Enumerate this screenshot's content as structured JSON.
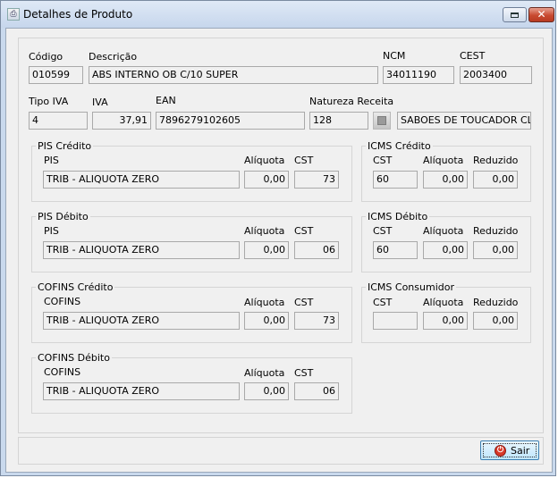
{
  "window": {
    "title": "Detalhes de Produto",
    "close_glyph": "✕",
    "app_icon_glyph": "⎙"
  },
  "product": {
    "codigo_label": "Código",
    "codigo_value": "010599",
    "descricao_label": "Descrição",
    "descricao_value": "ABS INTERNO OB C/10 SUPER",
    "ncm_label": "NCM",
    "ncm_value": "34011190",
    "cest_label": "CEST",
    "cest_value": "2003400",
    "tipo_iva_label": "Tipo IVA",
    "tipo_iva_value": "4",
    "iva_label": "IVA",
    "iva_value": "37,91",
    "ean_label": "EAN",
    "ean_value": "7896279102605",
    "natureza_label": "Natureza Receita",
    "natureza_code": "128",
    "natureza_desc": "SABOES DE TOUCADOR CLAS"
  },
  "pis_credito": {
    "title": "PIS Crédito",
    "col1": "PIS",
    "col2": "Alíquota",
    "col3": "CST",
    "desc": "TRIB - ALIQUOTA ZERO",
    "aliquota": "0,00",
    "cst": "73"
  },
  "pis_debito": {
    "title": "PIS Débito",
    "col1": "PIS",
    "col2": "Alíquota",
    "col3": "CST",
    "desc": "TRIB - ALIQUOTA ZERO",
    "aliquota": "0,00",
    "cst": "06"
  },
  "cofins_credito": {
    "title": "COFINS Crédito",
    "col1": "COFINS",
    "col2": "Alíquota",
    "col3": "CST",
    "desc": "TRIB - ALIQUOTA ZERO",
    "aliquota": "0,00",
    "cst": "73"
  },
  "cofins_debito": {
    "title": "COFINS Débito",
    "col1": "COFINS",
    "col2": "Alíquota",
    "col3": "CST",
    "desc": "TRIB - ALIQUOTA ZERO",
    "aliquota": "0,00",
    "cst": "06"
  },
  "icms_credito": {
    "title": "ICMS Crédito",
    "col1": "CST",
    "col2": "Alíquota",
    "col3": "Reduzido",
    "cst": "60",
    "aliquota": "0,00",
    "reduzido": "0,00"
  },
  "icms_debito": {
    "title": "ICMS Débito",
    "col1": "CST",
    "col2": "Alíquota",
    "col3": "Reduzido",
    "cst": "60",
    "aliquota": "0,00",
    "reduzido": "0,00"
  },
  "icms_consumidor": {
    "title": "ICMS Consumidor",
    "col1": "CST",
    "col2": "Alíquota",
    "col3": "Reduzido",
    "cst": "",
    "aliquota": "0,00",
    "reduzido": "0,00"
  },
  "footer": {
    "sair_label": "Sair",
    "sair_icon_glyph": "⏻"
  }
}
